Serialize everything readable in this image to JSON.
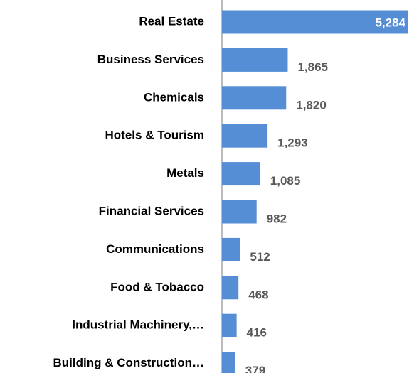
{
  "chart_data": {
    "type": "barh",
    "categories": [
      "Real Estate",
      "Business Services",
      "Chemicals",
      "Hotels & Tourism",
      "Metals",
      "Financial Services",
      "Communications",
      "Food & Tobacco",
      "Industrial Machinery,…",
      "Building & Construction…"
    ],
    "values": [
      5284,
      1865,
      1820,
      1293,
      1085,
      982,
      512,
      468,
      416,
      379
    ],
    "value_labels": [
      "5,284",
      "1,865",
      "1,820",
      "1,293",
      "1,085",
      "982",
      "512",
      "468",
      "416",
      "379"
    ],
    "color": "#558ed5"
  }
}
